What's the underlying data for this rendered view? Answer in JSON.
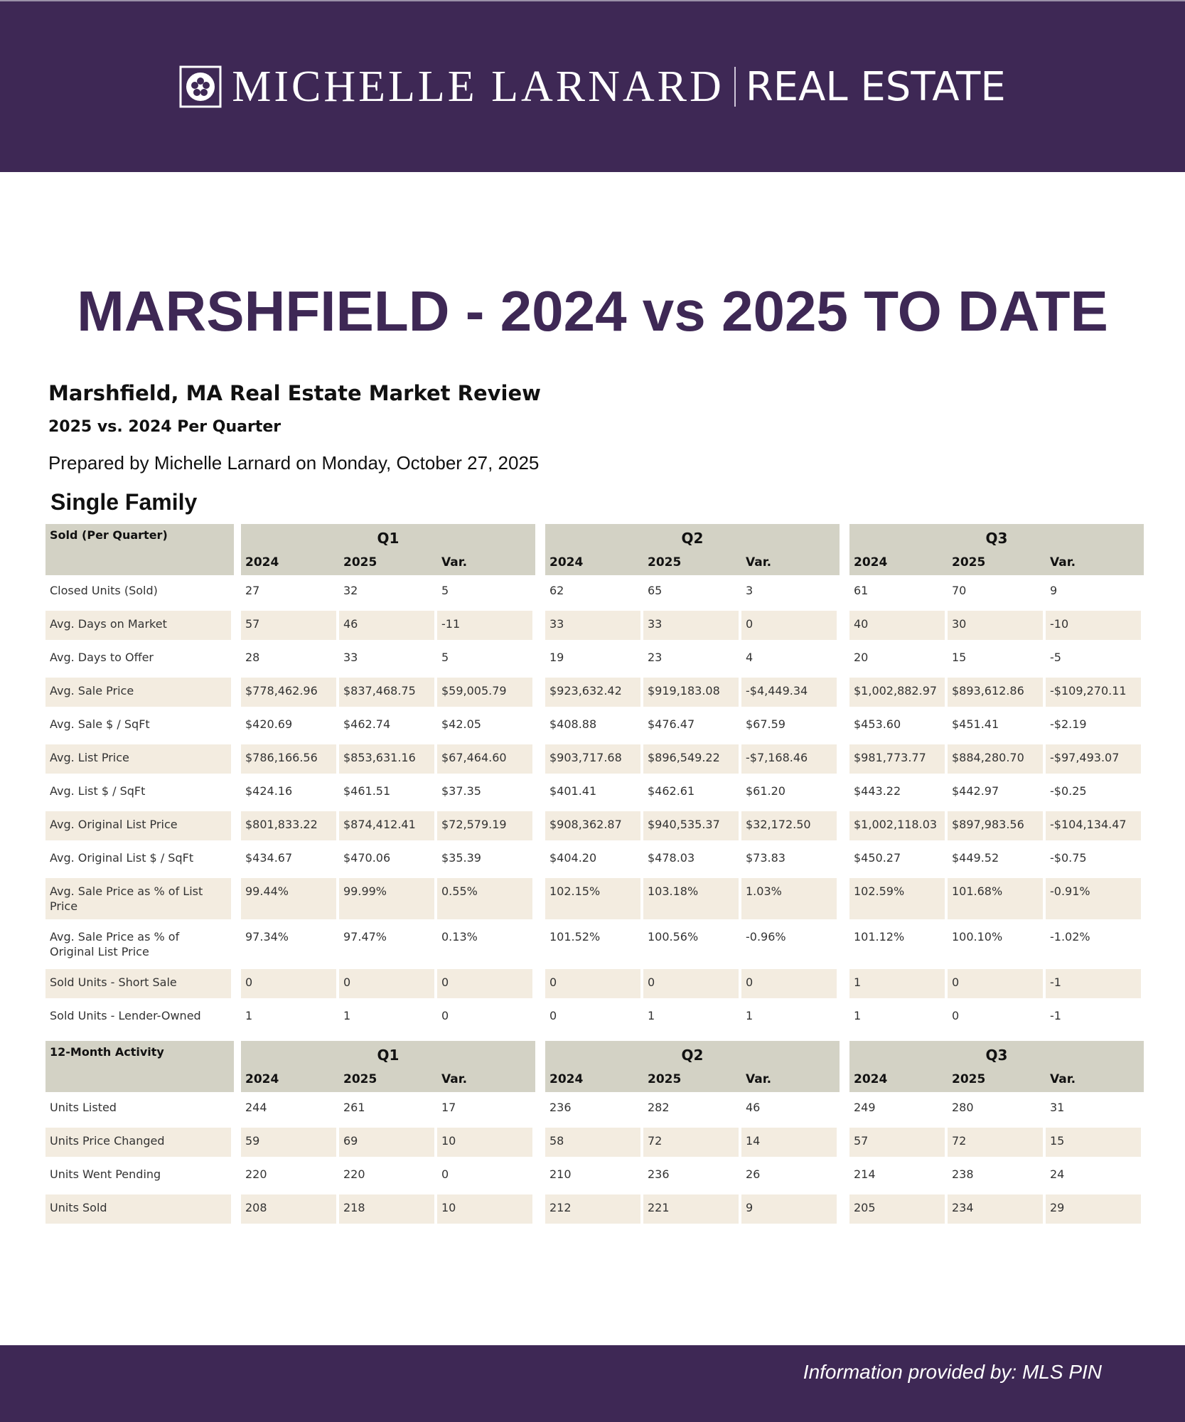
{
  "header": {
    "brand_name": "MICHELLE LARNARD",
    "brand_suffix": "REAL ESTATE"
  },
  "title": "MARSHFIELD - 2024 vs 2025 TO DATE",
  "report": {
    "title": "Marshfield, MA Real Estate Market Review",
    "subtitle": "2025 vs. 2024 Per Quarter",
    "prepared": "Prepared by Michelle Larnard on Monday, October 27, 2025",
    "section": "Single Family"
  },
  "tables": [
    {
      "label": "Sold (Per Quarter)",
      "quarters": [
        "Q1",
        "Q2",
        "Q3"
      ],
      "columns": [
        "2024",
        "2025",
        "Var."
      ],
      "rows": [
        [
          "Closed Units (Sold)",
          "27",
          "32",
          "5",
          "62",
          "65",
          "3",
          "61",
          "70",
          "9"
        ],
        [
          "Avg. Days on Market",
          "57",
          "46",
          "-11",
          "33",
          "33",
          "0",
          "40",
          "30",
          "-10"
        ],
        [
          "Avg. Days to Offer",
          "28",
          "33",
          "5",
          "19",
          "23",
          "4",
          "20",
          "15",
          "-5"
        ],
        [
          "Avg. Sale Price",
          "$778,462.96",
          "$837,468.75",
          "$59,005.79",
          "$923,632.42",
          "$919,183.08",
          "-$4,449.34",
          "$1,002,882.97",
          "$893,612.86",
          "-$109,270.11"
        ],
        [
          "Avg. Sale $ / SqFt",
          "$420.69",
          "$462.74",
          "$42.05",
          "$408.88",
          "$476.47",
          "$67.59",
          "$453.60",
          "$451.41",
          "-$2.19"
        ],
        [
          "Avg. List Price",
          "$786,166.56",
          "$853,631.16",
          "$67,464.60",
          "$903,717.68",
          "$896,549.22",
          "-$7,168.46",
          "$981,773.77",
          "$884,280.70",
          "-$97,493.07"
        ],
        [
          "Avg. List $ / SqFt",
          "$424.16",
          "$461.51",
          "$37.35",
          "$401.41",
          "$462.61",
          "$61.20",
          "$443.22",
          "$442.97",
          "-$0.25"
        ],
        [
          "Avg. Original List Price",
          "$801,833.22",
          "$874,412.41",
          "$72,579.19",
          "$908,362.87",
          "$940,535.37",
          "$32,172.50",
          "$1,002,118.03",
          "$897,983.56",
          "-$104,134.47"
        ],
        [
          "Avg. Original List $ / SqFt",
          "$434.67",
          "$470.06",
          "$35.39",
          "$404.20",
          "$478.03",
          "$73.83",
          "$450.27",
          "$449.52",
          "-$0.75"
        ],
        [
          "Avg. Sale Price as % of List Price",
          "99.44%",
          "99.99%",
          "0.55%",
          "102.15%",
          "103.18%",
          "1.03%",
          "102.59%",
          "101.68%",
          "-0.91%"
        ],
        [
          "Avg. Sale Price as % of Original List Price",
          "97.34%",
          "97.47%",
          "0.13%",
          "101.52%",
          "100.56%",
          "-0.96%",
          "101.12%",
          "100.10%",
          "-1.02%"
        ],
        [
          "Sold Units - Short Sale",
          "0",
          "0",
          "0",
          "0",
          "0",
          "0",
          "1",
          "0",
          "-1"
        ],
        [
          "Sold Units - Lender-Owned",
          "1",
          "1",
          "0",
          "0",
          "1",
          "1",
          "1",
          "0",
          "-1"
        ]
      ]
    },
    {
      "label": "12-Month Activity",
      "quarters": [
        "Q1",
        "Q2",
        "Q3"
      ],
      "columns": [
        "2024",
        "2025",
        "Var."
      ],
      "rows": [
        [
          "Units Listed",
          "244",
          "261",
          "17",
          "236",
          "282",
          "46",
          "249",
          "280",
          "31"
        ],
        [
          "Units Price Changed",
          "59",
          "69",
          "10",
          "58",
          "72",
          "14",
          "57",
          "72",
          "15"
        ],
        [
          "Units Went Pending",
          "220",
          "220",
          "0",
          "210",
          "236",
          "26",
          "214",
          "238",
          "24"
        ],
        [
          "Units Sold",
          "208",
          "218",
          "10",
          "212",
          "221",
          "9",
          "205",
          "234",
          "29"
        ]
      ]
    }
  ],
  "footer": "Information provided by: MLS PIN"
}
